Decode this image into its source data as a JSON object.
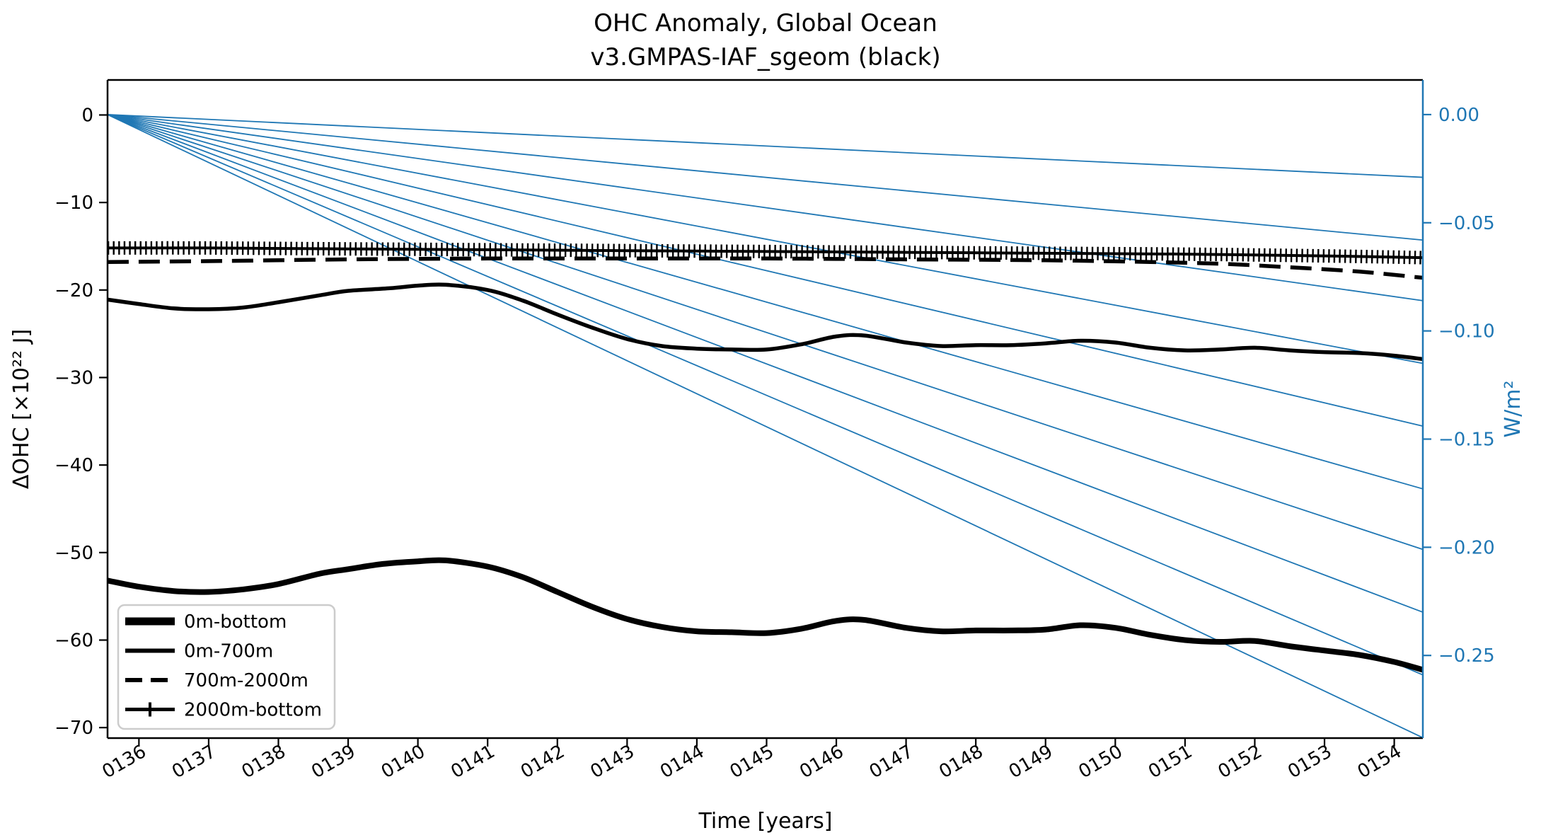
{
  "title": {
    "line1": "OHC Anomaly, Global Ocean",
    "line2": "v3.GMPAS-IAF_sgeom (black)"
  },
  "colors": {
    "series_black": "#000000",
    "reference_blue": "#1f77b4",
    "right_axis_blue": "#1f77b4",
    "legend_border": "#cccccc",
    "background": "#ffffff"
  },
  "legend": {
    "items": [
      {
        "label": "0m-bottom",
        "style": "thick-solid"
      },
      {
        "label": "0m-700m",
        "style": "solid"
      },
      {
        "label": "700m-2000m",
        "style": "dashed"
      },
      {
        "label": "2000m-bottom",
        "style": "solid-plus-marker"
      }
    ]
  },
  "chart_data": {
    "type": "line",
    "title": "OHC Anomaly, Global Ocean",
    "subtitle": "v3.GMPAS-IAF_sgeom (black)",
    "xlabel": "Time [years]",
    "ylabel_left": "ΔOHC [×10²² J]",
    "ylabel_right": "W/m²",
    "grid": false,
    "legend_position": "lower-left",
    "x_range_years": [
      135.55,
      154.41
    ],
    "ylim_left": [
      -71.2,
      4.0
    ],
    "ylim_right": [
      -0.2882,
      0.016
    ],
    "x_tick_years": [
      136,
      137,
      138,
      139,
      140,
      141,
      142,
      143,
      144,
      145,
      146,
      147,
      148,
      149,
      150,
      151,
      152,
      153,
      154
    ],
    "x_tick_labels": [
      "0136",
      "0137",
      "0138",
      "0139",
      "0140",
      "0141",
      "0142",
      "0143",
      "0144",
      "0145",
      "0146",
      "0147",
      "0148",
      "0149",
      "0150",
      "0151",
      "0152",
      "0153",
      "0154"
    ],
    "y_ticks_left_values": [
      0,
      -10,
      -20,
      -30,
      -40,
      -50,
      -60,
      -70
    ],
    "y_ticks_left_labels": [
      "0",
      "−10",
      "−20",
      "−30",
      "−40",
      "−50",
      "−60",
      "−70"
    ],
    "y_ticks_right_values": [
      0.0,
      -0.05,
      -0.1,
      -0.15,
      -0.2,
      -0.25
    ],
    "y_ticks_right_labels": [
      "0.00",
      "−0.05",
      "−0.10",
      "−0.15",
      "−0.20",
      "−0.25"
    ],
    "reference_lines": {
      "description": "thin blue straight lines fanning from (start_year, 0) to right axis",
      "origin_year": 135.55,
      "origin_value": 0,
      "end_values_right_axis": [
        -0.029,
        -0.058,
        -0.086,
        -0.115,
        -0.144,
        -0.173,
        -0.201,
        -0.23,
        -0.259,
        -0.288
      ]
    },
    "series": [
      {
        "name": "2000m-bottom",
        "axis": "left",
        "style": {
          "width": 4,
          "dash": null,
          "marker": "plus-comb"
        },
        "points": [
          [
            135.55,
            -15.2
          ],
          [
            137,
            -15.2
          ],
          [
            139,
            -15.3
          ],
          [
            141,
            -15.4
          ],
          [
            143,
            -15.5
          ],
          [
            145,
            -15.6
          ],
          [
            147,
            -15.7
          ],
          [
            149,
            -15.8
          ],
          [
            151,
            -15.9
          ],
          [
            153,
            -16.1
          ],
          [
            154.41,
            -16.3
          ]
        ]
      },
      {
        "name": "700m-2000m",
        "axis": "left",
        "style": {
          "width": 5.5,
          "dash": "30 14",
          "marker": null
        },
        "points": [
          [
            135.55,
            -16.8
          ],
          [
            137,
            -16.7
          ],
          [
            139,
            -16.5
          ],
          [
            141,
            -16.4
          ],
          [
            143,
            -16.4
          ],
          [
            145,
            -16.4
          ],
          [
            147,
            -16.5
          ],
          [
            149,
            -16.6
          ],
          [
            150.5,
            -16.8
          ],
          [
            151.5,
            -17.0
          ],
          [
            152.5,
            -17.4
          ],
          [
            153.5,
            -17.9
          ],
          [
            154.41,
            -18.6
          ]
        ]
      },
      {
        "name": "0m-700m",
        "axis": "left",
        "style": {
          "width": 5.5,
          "dash": null,
          "marker": null
        },
        "points": [
          [
            135.55,
            -21.1
          ],
          [
            136,
            -21.6
          ],
          [
            136.5,
            -22.1
          ],
          [
            137,
            -22.2
          ],
          [
            137.5,
            -22.0
          ],
          [
            138,
            -21.4
          ],
          [
            138.6,
            -20.6
          ],
          [
            139,
            -20.1
          ],
          [
            139.6,
            -19.8
          ],
          [
            140,
            -19.5
          ],
          [
            140.4,
            -19.4
          ],
          [
            141,
            -20.0
          ],
          [
            141.5,
            -21.2
          ],
          [
            142,
            -22.8
          ],
          [
            142.5,
            -24.3
          ],
          [
            143,
            -25.6
          ],
          [
            143.5,
            -26.4
          ],
          [
            144,
            -26.7
          ],
          [
            144.5,
            -26.8
          ],
          [
            145,
            -26.8
          ],
          [
            145.5,
            -26.2
          ],
          [
            146,
            -25.3
          ],
          [
            146.4,
            -25.2
          ],
          [
            147,
            -26.0
          ],
          [
            147.5,
            -26.4
          ],
          [
            148,
            -26.3
          ],
          [
            148.5,
            -26.3
          ],
          [
            149,
            -26.1
          ],
          [
            149.5,
            -25.8
          ],
          [
            150,
            -26.0
          ],
          [
            150.5,
            -26.6
          ],
          [
            151,
            -26.9
          ],
          [
            151.5,
            -26.8
          ],
          [
            152,
            -26.6
          ],
          [
            152.5,
            -26.9
          ],
          [
            153,
            -27.1
          ],
          [
            153.5,
            -27.2
          ],
          [
            154,
            -27.5
          ],
          [
            154.41,
            -27.9
          ]
        ]
      },
      {
        "name": "0m-bottom",
        "axis": "left",
        "style": {
          "width": 8,
          "dash": null,
          "marker": null
        },
        "points": [
          [
            135.55,
            -53.2
          ],
          [
            136,
            -53.9
          ],
          [
            136.5,
            -54.4
          ],
          [
            137,
            -54.5
          ],
          [
            137.5,
            -54.2
          ],
          [
            138,
            -53.6
          ],
          [
            138.6,
            -52.4
          ],
          [
            139,
            -51.9
          ],
          [
            139.5,
            -51.3
          ],
          [
            140,
            -51.0
          ],
          [
            140.4,
            -50.9
          ],
          [
            141,
            -51.6
          ],
          [
            141.5,
            -52.8
          ],
          [
            142,
            -54.5
          ],
          [
            142.5,
            -56.2
          ],
          [
            143,
            -57.6
          ],
          [
            143.5,
            -58.5
          ],
          [
            144,
            -59.0
          ],
          [
            144.5,
            -59.1
          ],
          [
            145,
            -59.2
          ],
          [
            145.5,
            -58.7
          ],
          [
            146,
            -57.8
          ],
          [
            146.4,
            -57.7
          ],
          [
            147,
            -58.6
          ],
          [
            147.5,
            -59.0
          ],
          [
            148,
            -58.9
          ],
          [
            148.5,
            -58.9
          ],
          [
            149,
            -58.8
          ],
          [
            149.5,
            -58.3
          ],
          [
            150,
            -58.6
          ],
          [
            150.5,
            -59.4
          ],
          [
            151,
            -60.0
          ],
          [
            151.5,
            -60.2
          ],
          [
            152,
            -60.1
          ],
          [
            152.5,
            -60.7
          ],
          [
            153,
            -61.2
          ],
          [
            153.5,
            -61.7
          ],
          [
            154,
            -62.5
          ],
          [
            154.41,
            -63.4
          ]
        ]
      }
    ]
  }
}
